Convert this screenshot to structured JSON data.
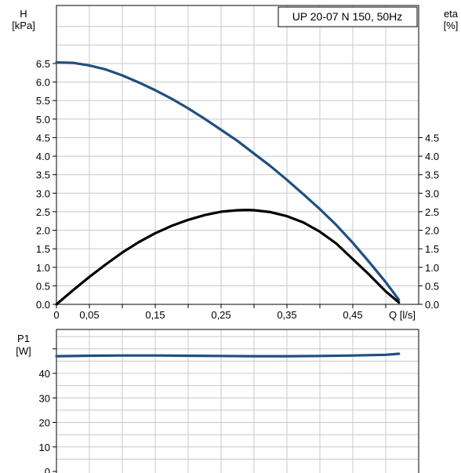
{
  "chart_data": [
    {
      "type": "line",
      "title": "UP 20-07 N 150, 50Hz",
      "xlabel": "Q [l/s]",
      "ylabel": "H",
      "ylabel_unit": "[kPa]",
      "y2label": "eta",
      "y2label_unit": "[%]",
      "xlim": [
        0,
        0.55
      ],
      "ylim": [
        0,
        7.5
      ],
      "y2lim": [
        0,
        7.5
      ],
      "grid": true,
      "x_tick_labels": [
        "0",
        "0,05",
        "0,15",
        "0,25",
        "0,35",
        "0,45",
        "Q [l/s]"
      ],
      "y_tick_labels": [
        "0.0",
        "0.5",
        "1.0",
        "1.5",
        "2.0",
        "2.5",
        "3.0",
        "3.5",
        "4.0",
        "4.5",
        "5.0",
        "5.5",
        "6.0",
        "6.5"
      ],
      "y2_tick_labels": [
        "0.0",
        "0.5",
        "1.0",
        "1.5",
        "2.0",
        "2.5",
        "3.0",
        "3.5",
        "4.0",
        "4.5"
      ],
      "series": [
        {
          "axis": "left",
          "color": "#1f4f82",
          "x": [
            0,
            0.025,
            0.05,
            0.075,
            0.1,
            0.125,
            0.15,
            0.175,
            0.2,
            0.225,
            0.25,
            0.275,
            0.3,
            0.325,
            0.35,
            0.375,
            0.4,
            0.425,
            0.45,
            0.475,
            0.5,
            0.52
          ],
          "values": [
            6.53,
            6.52,
            6.45,
            6.34,
            6.18,
            5.99,
            5.78,
            5.55,
            5.29,
            5.01,
            4.71,
            4.41,
            4.07,
            3.73,
            3.36,
            2.97,
            2.57,
            2.14,
            1.66,
            1.14,
            0.6,
            0.12
          ]
        },
        {
          "axis": "right",
          "color": "#000000",
          "x": [
            0,
            0.025,
            0.05,
            0.075,
            0.1,
            0.125,
            0.15,
            0.175,
            0.2,
            0.225,
            0.25,
            0.275,
            0.29,
            0.3,
            0.325,
            0.35,
            0.375,
            0.4,
            0.425,
            0.45,
            0.475,
            0.5,
            0.52
          ],
          "values": [
            0.0,
            0.38,
            0.74,
            1.08,
            1.4,
            1.68,
            1.92,
            2.12,
            2.28,
            2.41,
            2.5,
            2.54,
            2.55,
            2.54,
            2.49,
            2.38,
            2.21,
            1.96,
            1.64,
            1.22,
            0.8,
            0.35,
            0.05
          ]
        }
      ]
    },
    {
      "type": "line",
      "xlabel": "",
      "ylabel": "P1",
      "ylabel_unit": "[W]",
      "xlim": [
        0,
        0.55
      ],
      "ylim": [
        0,
        55
      ],
      "grid": true,
      "y_tick_labels": [
        "0",
        "10",
        "20",
        "30",
        "40"
      ],
      "series": [
        {
          "color": "#1f4f82",
          "x": [
            0,
            0.05,
            0.1,
            0.15,
            0.2,
            0.25,
            0.3,
            0.35,
            0.4,
            0.45,
            0.5,
            0.52
          ],
          "values": [
            47.0,
            47.2,
            47.3,
            47.3,
            47.2,
            47.1,
            47.0,
            47.0,
            47.1,
            47.3,
            47.6,
            48.0
          ]
        }
      ]
    }
  ]
}
